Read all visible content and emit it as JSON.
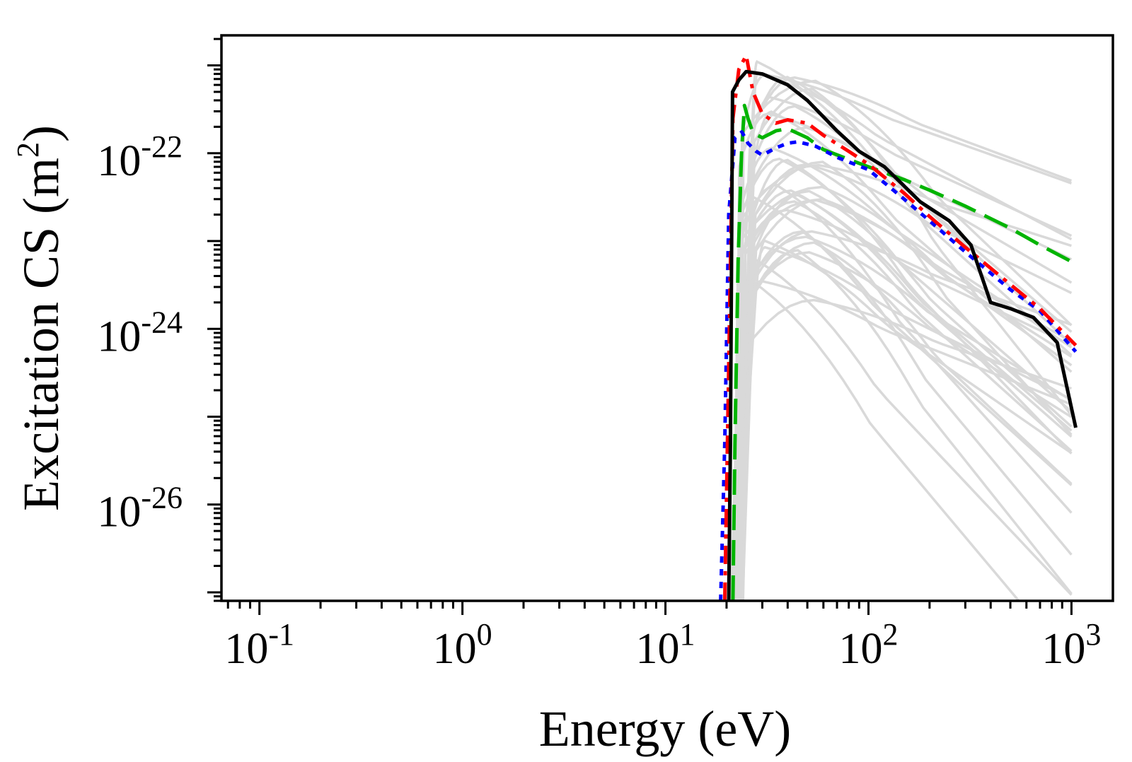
{
  "chart_data": {
    "type": "line",
    "title": "",
    "xlabel": "Energy (eV)",
    "ylabel": "Excitation CS (m²)",
    "ylabel_parts": {
      "text": "Excitation CS (m",
      "sup": "2",
      "close": ")"
    },
    "xscale": "log",
    "yscale": "log",
    "xlim": [
      0.065,
      1600
    ],
    "ylim": [
      8e-28,
      2.2e-21
    ],
    "grid": false,
    "legend": "none",
    "x_ticks": [
      {
        "base": "10",
        "exp": "-1",
        "value": 0.1
      },
      {
        "base": "10",
        "exp": "0",
        "value": 1
      },
      {
        "base": "10",
        "exp": "1",
        "value": 10
      },
      {
        "base": "10",
        "exp": "2",
        "value": 100
      },
      {
        "base": "10",
        "exp": "3",
        "value": 1000
      }
    ],
    "y_ticks": [
      {
        "base": "10",
        "exp": "-22",
        "value": 1e-22
      },
      {
        "base": "10",
        "exp": "-24",
        "value": 1e-24
      },
      {
        "base": "10",
        "exp": "-26",
        "value": 1e-26
      }
    ],
    "colors": {
      "black": "#000000",
      "red": "#ff0000",
      "green": "#00b400",
      "blue": "#0000ff",
      "gray": "#d9d9d9"
    },
    "series": [
      {
        "name": "black-solid",
        "color": "#000000",
        "dash": "solid",
        "x": [
          20.5,
          20.9,
          21.4,
          23.0,
          25.0,
          30.0,
          40.0,
          50.0,
          60.0,
          70.0,
          90.0,
          120.0,
          180.0,
          250.0,
          320.0,
          400.0,
          500.0,
          650.0,
          850.0,
          1050.0
        ],
        "y": [
          8e-28,
          5e-26,
          5e-22,
          6.8e-22,
          8.5e-22,
          8e-22,
          6e-22,
          4e-22,
          2.6e-22,
          1.8e-22,
          1.05e-22,
          7e-23,
          2.8e-23,
          1.7e-23,
          9e-24,
          2e-24,
          1.7e-24,
          1.35e-24,
          7e-25,
          7.5e-26
        ]
      },
      {
        "name": "red-dashdot",
        "color": "#ff0000",
        "dash": "dashdot",
        "x": [
          19.6,
          20.3,
          21.5,
          23.0,
          25.0,
          27.0,
          30.0,
          35.0,
          40.0,
          50.0,
          60.0,
          80.0,
          100.0,
          150.0,
          200.0,
          300.0,
          500.0,
          700.0,
          1050.0
        ],
        "y": [
          8e-28,
          1e-25,
          2.5e-22,
          9e-22,
          1.3e-21,
          5e-22,
          2.8e-22,
          2.2e-22,
          2.4e-22,
          2.2e-22,
          1.6e-22,
          1.05e-22,
          7.5e-23,
          3.5e-23,
          1.9e-23,
          8.5e-24,
          3.2e-24,
          1.7e-24,
          6.5e-25
        ]
      },
      {
        "name": "green-dashed",
        "color": "#00b400",
        "dash": "dashed",
        "x": [
          21.5,
          22.0,
          22.8,
          23.7,
          24.5,
          25.5,
          27.0,
          30.0,
          35.0,
          40.0,
          50.0,
          60.0,
          80.0,
          100.0,
          150.0,
          200.0,
          300.0,
          500.0,
          700.0,
          1050.0
        ],
        "y": [
          8e-28,
          5e-26,
          6e-24,
          1e-22,
          3.5e-22,
          2.5e-22,
          1.7e-22,
          1.5e-22,
          1.8e-22,
          1.9e-22,
          1.5e-22,
          1.1e-22,
          8.5e-23,
          7e-23,
          5e-23,
          3.8e-23,
          2.5e-23,
          1.4e-23,
          9e-24,
          5.5e-24
        ]
      },
      {
        "name": "blue-dotted",
        "color": "#0000ff",
        "dash": "dotted",
        "x": [
          18.7,
          19.6,
          20.5,
          22.0,
          23.8,
          25.5,
          28.0,
          30.0,
          35.0,
          40.0,
          45.0,
          55.0,
          70.0,
          100.0,
          150.0,
          200.0,
          300.0,
          500.0,
          700.0,
          1050.0
        ],
        "y": [
          8e-28,
          5e-26,
          2e-23,
          1.5e-22,
          1.75e-22,
          1.3e-22,
          1.05e-22,
          9.5e-23,
          1.15e-22,
          1.3e-22,
          1.35e-22,
          1.2e-22,
          9e-23,
          6.5e-23,
          3e-23,
          1.7e-23,
          7.5e-24,
          2.8e-24,
          1.6e-24,
          5.5e-25
        ]
      }
    ],
    "background_curves": {
      "color": "#d9d9d9",
      "count": 40,
      "threshold_eV": [
        20.5,
        24.0
      ],
      "onset_eV": [
        21.5,
        28.0
      ],
      "peak_eV": [
        25.0,
        60.0
      ],
      "peak_cs": [
        2e-24,
        1.2e-21
      ],
      "end_eV": 1000,
      "falloff_decades_per_decade": [
        0.6,
        3.0
      ]
    }
  }
}
